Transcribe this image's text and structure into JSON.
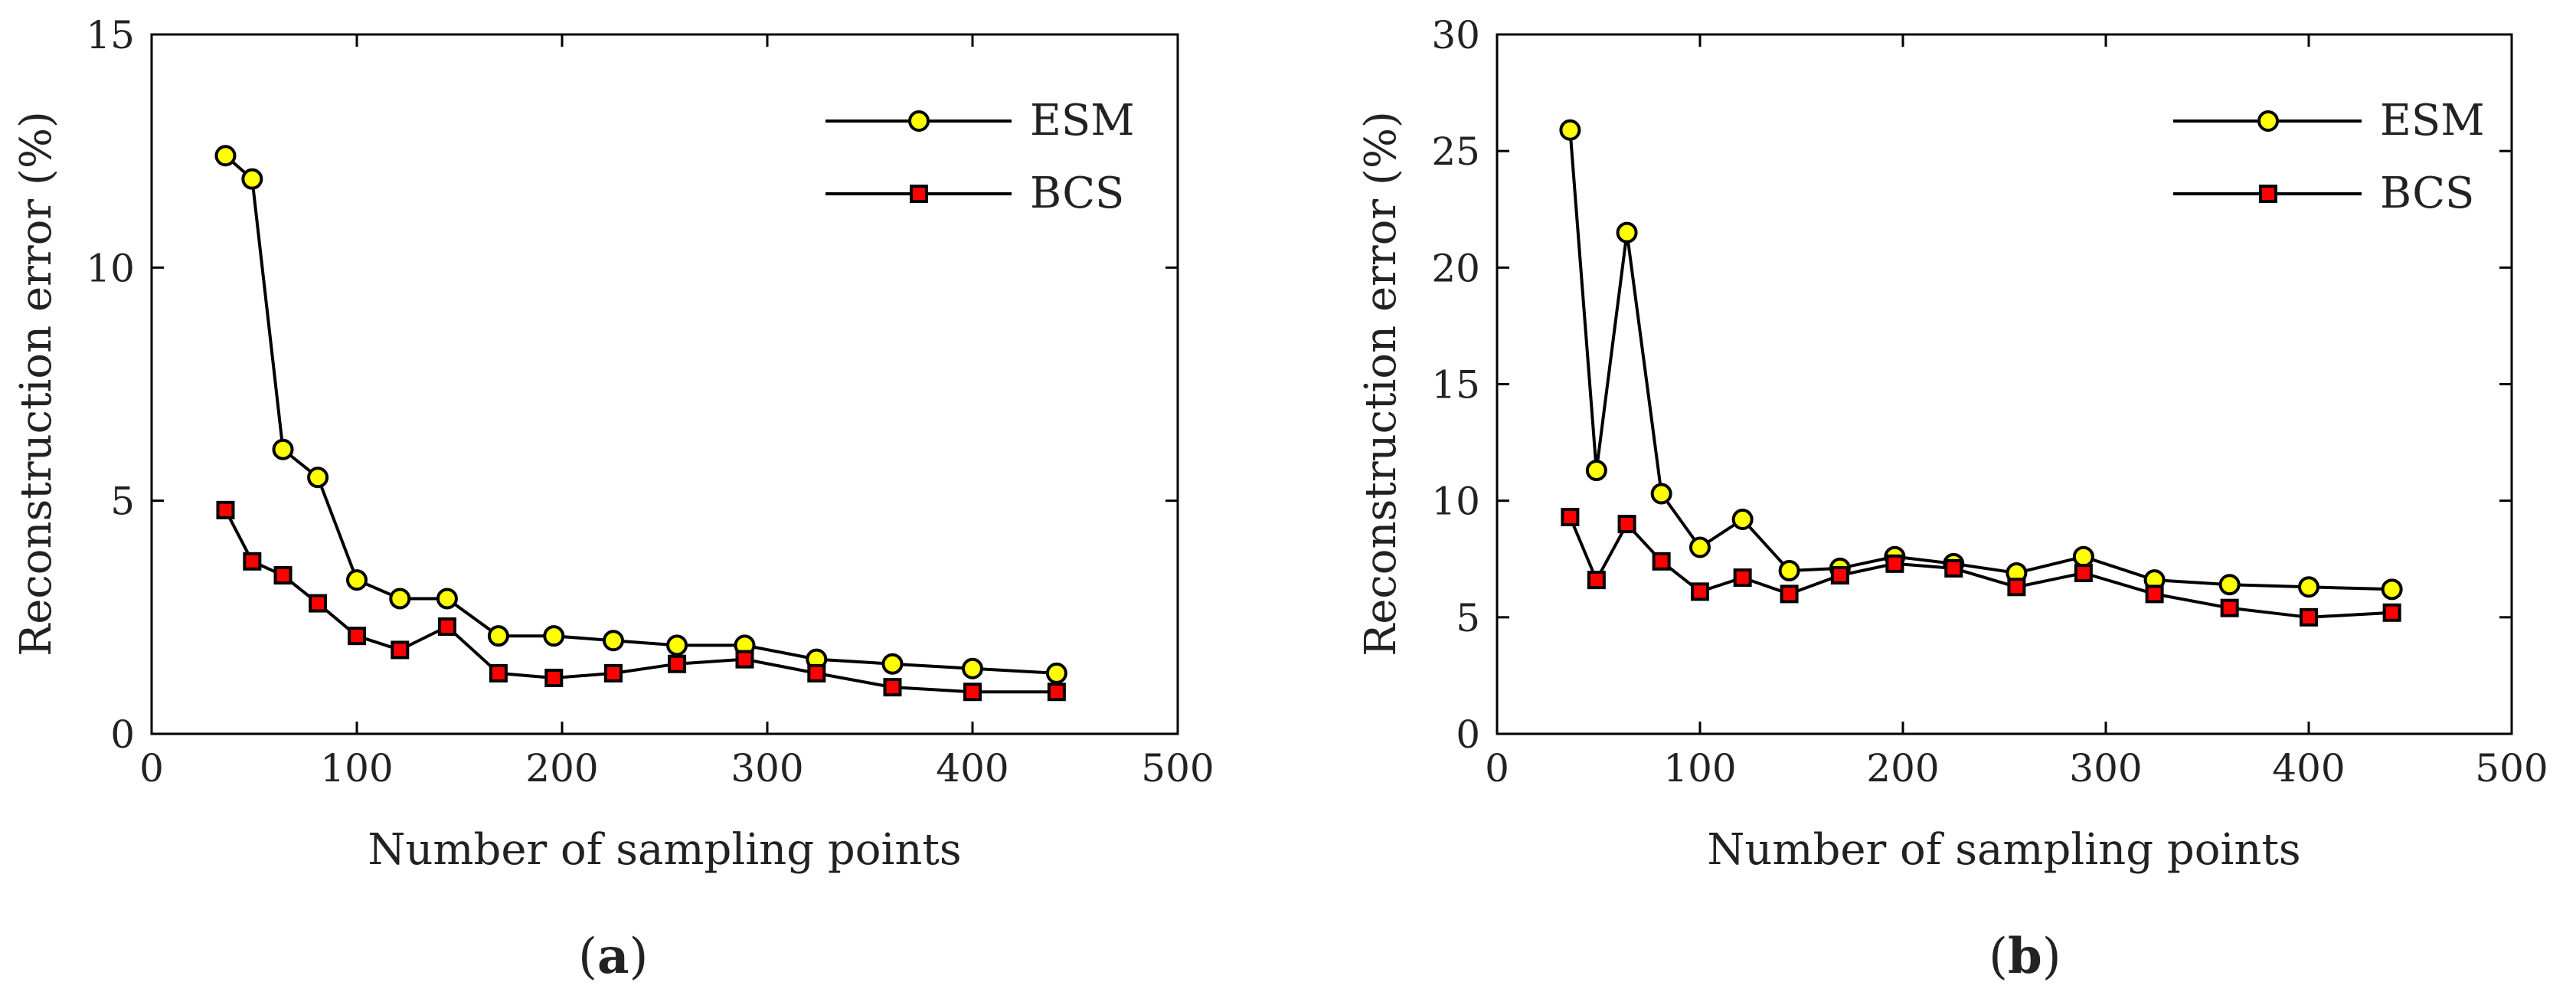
{
  "chart_data": [
    {
      "type": "line",
      "panel_label": "a",
      "title": "",
      "xlabel": "Number of sampling points",
      "ylabel": "Reconstruction error (%)",
      "xlim": [
        0,
        500
      ],
      "ylim": [
        0,
        15
      ],
      "xticks": [
        0,
        100,
        200,
        300,
        400,
        500
      ],
      "yticks": [
        0,
        5,
        10,
        15
      ],
      "grid": false,
      "legend_position": "top-right",
      "series": [
        {
          "name": "ESM",
          "marker": "circle",
          "color": "#ffff00",
          "x": [
            36,
            49,
            64,
            81,
            100,
            121,
            144,
            169,
            196,
            225,
            256,
            289,
            324,
            361,
            400,
            441
          ],
          "y": [
            12.4,
            11.9,
            6.1,
            5.5,
            3.3,
            2.9,
            2.9,
            2.1,
            2.1,
            2.0,
            1.9,
            1.9,
            1.6,
            1.5,
            1.4,
            1.3
          ]
        },
        {
          "name": "BCS",
          "marker": "square",
          "color": "#ff0000",
          "x": [
            36,
            49,
            64,
            81,
            100,
            121,
            144,
            169,
            196,
            225,
            256,
            289,
            324,
            361,
            400,
            441
          ],
          "y": [
            4.8,
            3.7,
            3.4,
            2.8,
            2.1,
            1.8,
            2.3,
            1.3,
            1.2,
            1.3,
            1.5,
            1.6,
            1.3,
            1.0,
            0.9,
            0.9
          ]
        }
      ]
    },
    {
      "type": "line",
      "panel_label": "b",
      "title": "",
      "xlabel": "Number of sampling points",
      "ylabel": "Reconstruction error (%)",
      "xlim": [
        0,
        500
      ],
      "ylim": [
        0,
        30
      ],
      "xticks": [
        0,
        100,
        200,
        300,
        400,
        500
      ],
      "yticks": [
        0,
        5,
        10,
        15,
        20,
        25,
        30
      ],
      "grid": false,
      "legend_position": "top-right",
      "series": [
        {
          "name": "ESM",
          "marker": "circle",
          "color": "#ffff00",
          "x": [
            36,
            49,
            64,
            81,
            100,
            121,
            144,
            169,
            196,
            225,
            256,
            289,
            324,
            361,
            400,
            441
          ],
          "y": [
            25.9,
            11.3,
            21.5,
            10.3,
            8.0,
            9.2,
            7.0,
            7.1,
            7.6,
            7.3,
            6.9,
            7.6,
            6.6,
            6.4,
            6.3,
            6.2
          ]
        },
        {
          "name": "BCS",
          "marker": "square",
          "color": "#ff0000",
          "x": [
            36,
            49,
            64,
            81,
            100,
            121,
            144,
            169,
            196,
            225,
            256,
            289,
            324,
            361,
            400,
            441
          ],
          "y": [
            9.3,
            6.6,
            9.0,
            7.4,
            6.1,
            6.7,
            6.0,
            6.8,
            7.3,
            7.1,
            6.3,
            6.9,
            6.0,
            5.4,
            5.0,
            5.2
          ]
        }
      ]
    }
  ]
}
